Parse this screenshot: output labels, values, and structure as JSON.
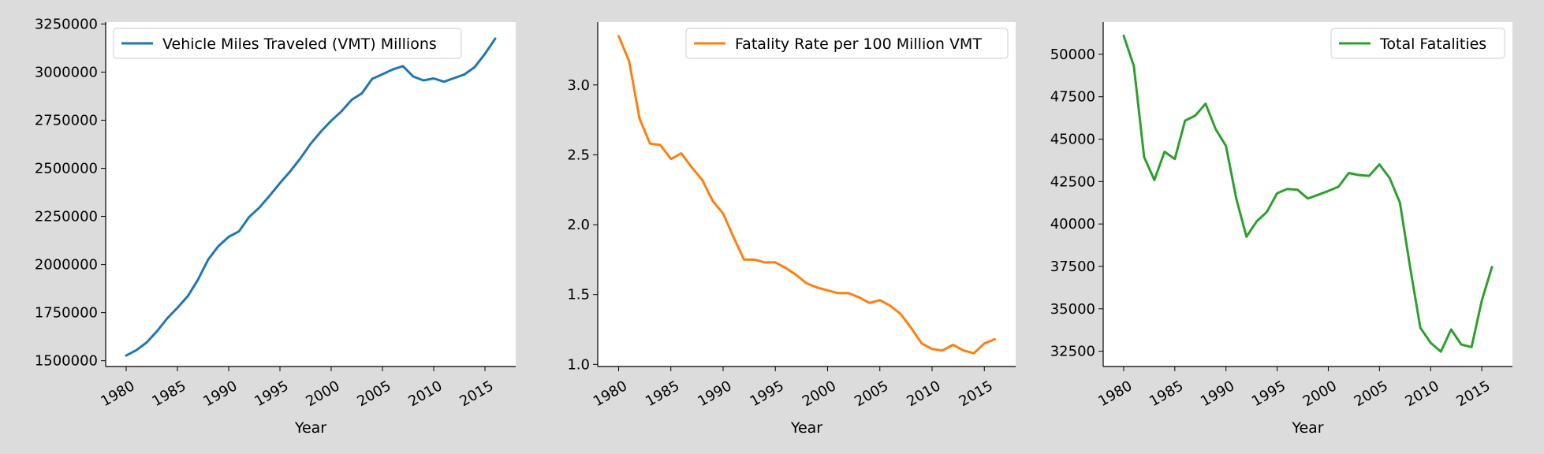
{
  "figure": {
    "background": "#dcdcdc"
  },
  "chart_data": [
    {
      "type": "line",
      "xlabel": "Year",
      "ylabel": "",
      "xlim": [
        1978,
        2018
      ],
      "ylim": [
        1470000,
        3260000
      ],
      "xticks": [
        1980,
        1985,
        1990,
        1995,
        2000,
        2005,
        2010,
        2015
      ],
      "yticks": [
        1500000,
        1750000,
        2000000,
        2250000,
        2500000,
        2750000,
        3000000,
        3250000
      ],
      "legend_position": "upper-left",
      "grid": false,
      "x": [
        1980,
        1981,
        1982,
        1983,
        1984,
        1985,
        1986,
        1987,
        1988,
        1989,
        1990,
        1991,
        1992,
        1993,
        1994,
        1995,
        1996,
        1997,
        1998,
        1999,
        2000,
        2001,
        2002,
        2003,
        2004,
        2005,
        2006,
        2007,
        2008,
        2009,
        2010,
        2011,
        2012,
        2013,
        2014,
        2015,
        2016
      ],
      "series": [
        {
          "name": "Vehicle Miles Traveled (VMT) Millions",
          "color": "#1f77b4",
          "values": [
            1527000,
            1555000,
            1595000,
            1653000,
            1720000,
            1775000,
            1835000,
            1921000,
            2026000,
            2096000,
            2144000,
            2172000,
            2247000,
            2296000,
            2358000,
            2423000,
            2484000,
            2552000,
            2628000,
            2691000,
            2747000,
            2796000,
            2856000,
            2890000,
            2965000,
            2989000,
            3014000,
            3031000,
            2977000,
            2957000,
            2967000,
            2950000,
            2969000,
            2988000,
            3026000,
            3095000,
            3174000
          ]
        }
      ]
    },
    {
      "type": "line",
      "xlabel": "Year",
      "ylabel": "",
      "xlim": [
        1978,
        2018
      ],
      "ylim": [
        0.985,
        3.45
      ],
      "xticks": [
        1980,
        1985,
        1990,
        1995,
        2000,
        2005,
        2010,
        2015
      ],
      "yticks": [
        "1.0",
        "1.5",
        "2.0",
        "2.5",
        "3.0"
      ],
      "legend_position": "upper-right",
      "grid": false,
      "x": [
        1980,
        1981,
        1982,
        1983,
        1984,
        1985,
        1986,
        1987,
        1988,
        1989,
        1990,
        1991,
        1992,
        1993,
        1994,
        1995,
        1996,
        1997,
        1998,
        1999,
        2000,
        2001,
        2002,
        2003,
        2004,
        2005,
        2006,
        2007,
        2008,
        2009,
        2010,
        2011,
        2012,
        2013,
        2014,
        2015,
        2016
      ],
      "series": [
        {
          "name": "Fatality Rate per 100 Million VMT",
          "color": "#ff7f0e",
          "values": [
            3.35,
            3.17,
            2.76,
            2.58,
            2.57,
            2.47,
            2.51,
            2.41,
            2.32,
            2.17,
            2.08,
            1.91,
            1.75,
            1.75,
            1.73,
            1.73,
            1.69,
            1.64,
            1.58,
            1.55,
            1.53,
            1.51,
            1.51,
            1.48,
            1.44,
            1.46,
            1.42,
            1.36,
            1.26,
            1.15,
            1.11,
            1.1,
            1.14,
            1.1,
            1.08,
            1.15,
            1.18
          ]
        }
      ]
    },
    {
      "type": "line",
      "xlabel": "Year",
      "ylabel": "",
      "xlim": [
        1978,
        2018
      ],
      "ylim": [
        31600,
        51900
      ],
      "xticks": [
        1980,
        1985,
        1990,
        1995,
        2000,
        2005,
        2010,
        2015
      ],
      "yticks": [
        32500,
        35000,
        37500,
        40000,
        42500,
        45000,
        47500,
        50000
      ],
      "legend_position": "upper-right",
      "grid": false,
      "x": [
        1980,
        1981,
        1982,
        1983,
        1984,
        1985,
        1986,
        1987,
        1988,
        1989,
        1990,
        1991,
        1992,
        1993,
        1994,
        1995,
        1996,
        1997,
        1998,
        1999,
        2000,
        2001,
        2002,
        2003,
        2004,
        2005,
        2006,
        2007,
        2008,
        2009,
        2010,
        2011,
        2012,
        2013,
        2014,
        2015,
        2016
      ],
      "series": [
        {
          "name": "Total Fatalities",
          "color": "#2ca02c",
          "values": [
            51091,
            49301,
            43945,
            42589,
            44257,
            43825,
            46087,
            46390,
            47087,
            45582,
            44599,
            41508,
            39250,
            40150,
            40716,
            41817,
            42065,
            42013,
            41501,
            41717,
            41945,
            42196,
            43005,
            42884,
            42836,
            43510,
            42708,
            41259,
            37423,
            33883,
            32999,
            32479,
            33782,
            32894,
            32744,
            35484,
            37461
          ]
        }
      ]
    }
  ]
}
